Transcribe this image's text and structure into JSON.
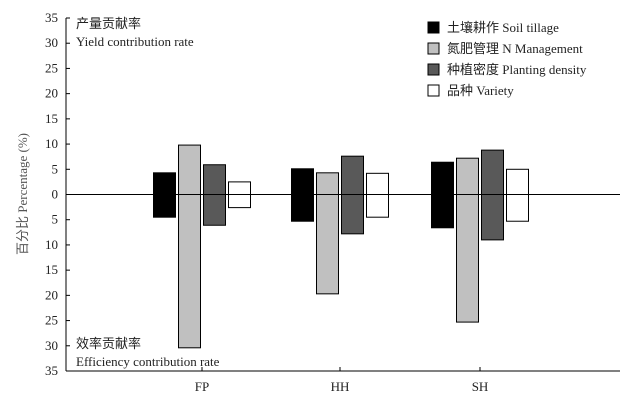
{
  "chart_data": {
    "type": "bar",
    "ylabel": "百分比 Percentage (%)",
    "y_tick_labels": [
      "35",
      "30",
      "25",
      "20",
      "15",
      "10",
      "5",
      "0",
      "5",
      "10",
      "15",
      "20",
      "25",
      "30",
      "35"
    ],
    "y_range": [
      -35,
      35
    ],
    "categories": [
      "FP",
      "HH",
      "SH"
    ],
    "series": [
      {
        "name": "土壤耕作 Soil tillage",
        "color": "#000000",
        "yield_contribution": [
          4.3,
          5.1,
          6.4
        ],
        "efficiency_contribution": [
          4.5,
          5.3,
          6.6
        ]
      },
      {
        "name": "氮肥管理 N Management",
        "color": "#c0c0c0",
        "yield_contribution": [
          9.8,
          4.3,
          7.2
        ],
        "efficiency_contribution": [
          30.4,
          19.7,
          25.3
        ]
      },
      {
        "name": "种植密度 Planting density",
        "color": "#595959",
        "yield_contribution": [
          5.9,
          7.6,
          8.8
        ],
        "efficiency_contribution": [
          6.1,
          7.8,
          9.0
        ]
      },
      {
        "name": "品种 Variety",
        "color": "#ffffff",
        "yield_contribution": [
          2.5,
          4.2,
          5.0
        ],
        "efficiency_contribution": [
          2.6,
          4.5,
          5.3
        ]
      }
    ],
    "annotations": {
      "top_cn": "产量贡献率",
      "top_en": "Yield contribution rate",
      "bottom_cn": "效率贡献率",
      "bottom_en": "Efficiency contribution rate"
    },
    "legend_position": "top-right",
    "grid": false
  }
}
